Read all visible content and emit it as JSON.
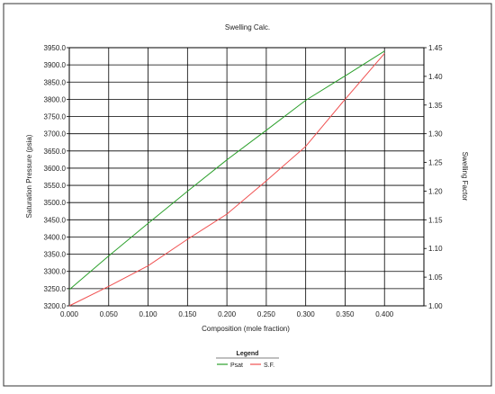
{
  "chart_data": {
    "type": "line",
    "title": "Swelling Calc.",
    "xlabel": "Composition (mole fraction)",
    "ylabel": "Saturation Pressure (psia)",
    "y2label": "Swelling Factor",
    "x": [
      0.0,
      0.05,
      0.1,
      0.15,
      0.2,
      0.25,
      0.3,
      0.35,
      0.4
    ],
    "xlim": [
      0.0,
      0.45
    ],
    "ylim": [
      3200.0,
      3950.0
    ],
    "y2lim": [
      1.0,
      1.45
    ],
    "xticks": [
      "0.000",
      "0.050",
      "0.100",
      "0.150",
      "0.200",
      "0.250",
      "0.300",
      "0.350",
      "0.400"
    ],
    "yticks": [
      "3200.0",
      "3250.0",
      "3300.0",
      "3350.0",
      "3400.0",
      "3450.0",
      "3500.0",
      "3550.0",
      "3600.0",
      "3650.0",
      "3700.0",
      "3750.0",
      "3800.0",
      "3850.0",
      "3900.0",
      "3950.0"
    ],
    "y2ticks": [
      "1.00",
      "1.05",
      "1.10",
      "1.15",
      "1.20",
      "1.25",
      "1.30",
      "1.35",
      "1.40",
      "1.45"
    ],
    "grid": true,
    "legend": {
      "title": "Legend",
      "position": "bottom-center"
    },
    "series": [
      {
        "name": "Psat",
        "axis": "left",
        "color": "#2ca02c",
        "values": [
          3247,
          3345,
          3440,
          3533,
          3624,
          3710,
          3797,
          3868,
          3940
        ]
      },
      {
        "name": "S.F.",
        "axis": "right",
        "color": "#f05050",
        "values": [
          1.0,
          1.034,
          1.07,
          1.116,
          1.16,
          1.218,
          1.278,
          1.36,
          1.44
        ]
      }
    ]
  }
}
